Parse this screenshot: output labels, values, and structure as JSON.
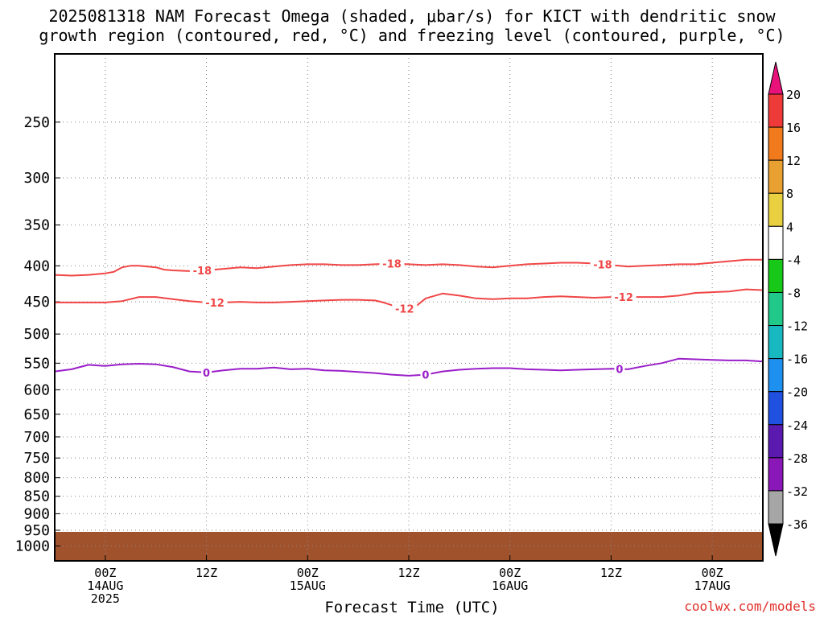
{
  "title": {
    "line1": "2025081318 NAM Forecast Omega (shaded, μbar/s) for KICT with dendritic snow",
    "line2": "growth region (contoured, red, °C) and freezing level (contoured, purple, °C)"
  },
  "credit": "coolwx.com/models",
  "colors": {
    "dgz_contour": "#f04646",
    "freezing_contour": "#9a1ec8",
    "ground": "#a0522d",
    "grid": "#888888"
  },
  "chart_data": {
    "type": "line",
    "title": "2025081318 NAM Forecast Omega (shaded, μbar/s) for KICT with dendritic snow growth region (contoured, red, °C) and freezing level (contoured, purple, °C)",
    "xlabel": "Forecast Time (UTC)",
    "ylabel": "",
    "x_axis": {
      "unit": "hours since 2025-08-13 18Z",
      "range": [
        0,
        84
      ],
      "ticks": [
        {
          "hour": 6,
          "lines": [
            "00Z",
            "14AUG",
            "2025"
          ]
        },
        {
          "hour": 18,
          "lines": [
            "12Z"
          ]
        },
        {
          "hour": 30,
          "lines": [
            "00Z",
            "15AUG"
          ]
        },
        {
          "hour": 42,
          "lines": [
            "12Z"
          ]
        },
        {
          "hour": 54,
          "lines": [
            "00Z",
            "16AUG"
          ]
        },
        {
          "hour": 66,
          "lines": [
            "12Z"
          ]
        },
        {
          "hour": 78,
          "lines": [
            "00Z",
            "17AUG"
          ]
        }
      ]
    },
    "y_axis": {
      "unit": "hPa",
      "scale": "log",
      "inverted": true,
      "range": [
        200,
        1050
      ],
      "ticks": [
        250,
        300,
        350,
        400,
        450,
        500,
        550,
        600,
        650,
        700,
        750,
        800,
        850,
        900,
        950,
        1000
      ]
    },
    "grid": true,
    "series": [
      {
        "name": "-18",
        "color": "#f04646",
        "x": [
          0,
          2,
          4,
          6,
          7,
          8,
          9,
          10,
          12,
          13,
          14,
          16,
          18,
          20,
          22,
          24,
          26,
          28,
          30,
          32,
          34,
          36,
          38,
          40,
          42,
          44,
          46,
          48,
          50,
          52,
          54,
          56,
          58,
          60,
          62,
          64,
          66,
          68,
          70,
          72,
          74,
          76,
          78,
          80,
          82,
          84
        ],
        "y": [
          412,
          413,
          412,
          410,
          408,
          402,
          400,
          400,
          402,
          405,
          406,
          407,
          406,
          404,
          402,
          403,
          401,
          399,
          398,
          398,
          399,
          399,
          398,
          397,
          398,
          399,
          398,
          399,
          401,
          402,
          400,
          398,
          397,
          396,
          396,
          397,
          399,
          401,
          400,
          399,
          398,
          398,
          396,
          394,
          392,
          392
        ],
        "labels": [
          {
            "x": 17.5,
            "text": "-18"
          },
          {
            "x": 40,
            "text": "-18"
          },
          {
            "x": 65,
            "text": "-18"
          }
        ]
      },
      {
        "name": "-12",
        "color": "#f04646",
        "x": [
          0,
          2,
          4,
          6,
          8,
          10,
          12,
          14,
          16,
          18,
          20,
          22,
          24,
          26,
          28,
          30,
          32,
          34,
          36,
          38,
          39,
          40,
          41,
          42,
          43,
          44,
          46,
          48,
          50,
          52,
          54,
          56,
          58,
          60,
          62,
          64,
          66,
          68,
          70,
          72,
          74,
          76,
          78,
          80,
          82,
          84
        ],
        "y": [
          451,
          451,
          451,
          451,
          449,
          443,
          443,
          446,
          449,
          451,
          451,
          450,
          451,
          451,
          450,
          449,
          448,
          447,
          447,
          448,
          451,
          455,
          459,
          461,
          455,
          445,
          438,
          441,
          445,
          446,
          445,
          445,
          443,
          442,
          443,
          444,
          443,
          443,
          443,
          443,
          441,
          437,
          436,
          435,
          432,
          433
        ],
        "labels": [
          {
            "x": 19,
            "text": "-12"
          },
          {
            "x": 41.5,
            "text": "-12"
          },
          {
            "x": 67.5,
            "text": "-12"
          }
        ]
      },
      {
        "name": "0",
        "color": "#9a1ec8",
        "x": [
          0,
          2,
          4,
          6,
          8,
          10,
          12,
          14,
          16,
          18,
          20,
          22,
          24,
          26,
          28,
          30,
          32,
          34,
          36,
          38,
          40,
          42,
          44,
          46,
          48,
          50,
          52,
          54,
          56,
          58,
          60,
          62,
          64,
          66,
          68,
          70,
          72,
          74,
          76,
          78,
          80,
          82,
          84
        ],
        "y": [
          565,
          561,
          553,
          555,
          552,
          551,
          552,
          557,
          565,
          567,
          563,
          560,
          560,
          558,
          561,
          560,
          563,
          564,
          566,
          568,
          571,
          573,
          571,
          565,
          562,
          560,
          559,
          559,
          561,
          562,
          563,
          562,
          561,
          560,
          561,
          555,
          550,
          542,
          543,
          544,
          545,
          545,
          547
        ],
        "labels": [
          {
            "x": 18,
            "text": "0"
          },
          {
            "x": 44,
            "text": "0"
          },
          {
            "x": 67,
            "text": "0"
          }
        ]
      }
    ],
    "ground": {
      "top_hPa": 955,
      "bottom_hPa": 1050
    },
    "colorbar": {
      "unit": "μbar/s",
      "levels": [
        20,
        16,
        12,
        8,
        4,
        -4,
        -8,
        -12,
        -16,
        -20,
        -24,
        -28,
        -32,
        -36
      ],
      "colors": [
        "#ef3a3a",
        "#f07a1c",
        "#e8a030",
        "#e8d040",
        "#ffffff",
        "#18c818",
        "#20c88a",
        "#18b8c0",
        "#1e90f0",
        "#2050e0",
        "#5a1ab0",
        "#8a18b8",
        "#a6a6a6"
      ],
      "over_color": "#e8127a",
      "under_color": "#000000"
    }
  }
}
